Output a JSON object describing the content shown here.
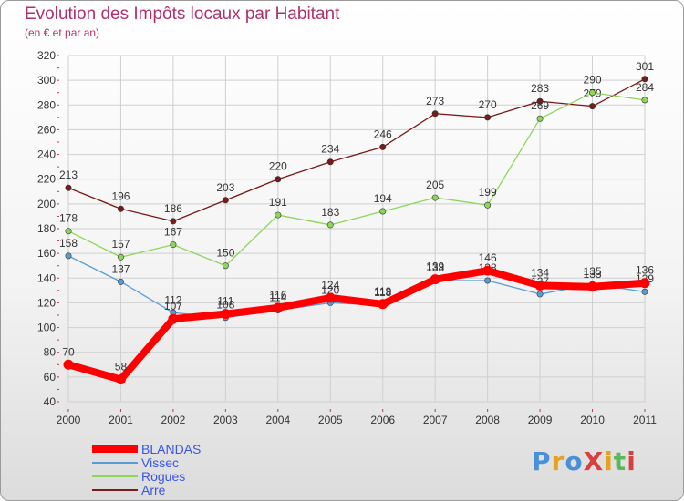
{
  "title": "Evolution des Impôts locaux par Habitant",
  "subtitle": "(en € et par an)",
  "logo": {
    "text": "ProXiti",
    "colors": [
      "#4a90d9",
      "#e8a020",
      "#4a90d9",
      "#d84040",
      "#e8a020",
      "#5ab85a",
      "#d84040"
    ]
  },
  "chart_data": {
    "type": "line",
    "title": "Evolution des Impôts locaux par Habitant",
    "subtitle": "(en € et par an)",
    "xlabel": "",
    "ylabel": "",
    "ylim": [
      40,
      320
    ],
    "yticks": [
      40,
      60,
      80,
      100,
      120,
      140,
      160,
      180,
      200,
      220,
      240,
      260,
      280,
      300,
      320
    ],
    "grid": true,
    "legend_position": "bottom-left",
    "x": [
      "2000",
      "2001",
      "2002",
      "2003",
      "2004",
      "2005",
      "2006",
      "2007",
      "2008",
      "2009",
      "2010",
      "2011"
    ],
    "series": [
      {
        "name": "Arre",
        "color": "#7a1a1a",
        "values": [
          213,
          196,
          186,
          203,
          220,
          234,
          246,
          273,
          270,
          283,
          279,
          301
        ]
      },
      {
        "name": "Rogues",
        "color": "#8cd65a",
        "values": [
          178,
          157,
          167,
          150,
          191,
          183,
          194,
          205,
          199,
          269,
          290,
          284
        ]
      },
      {
        "name": "Vissec",
        "color": "#5b9bd5",
        "values": [
          158,
          137,
          112,
          108,
          114,
          120,
          118,
          138,
          138,
          127,
          135,
          129
        ]
      },
      {
        "name": "BLANDAS",
        "color": "#ff0000",
        "values": [
          70,
          58,
          107,
          111,
          116,
          124,
          119,
          139,
          146,
          134,
          133,
          136
        ]
      }
    ],
    "legend_order": [
      "BLANDAS",
      "Vissec",
      "Rogues",
      "Arre"
    ]
  }
}
